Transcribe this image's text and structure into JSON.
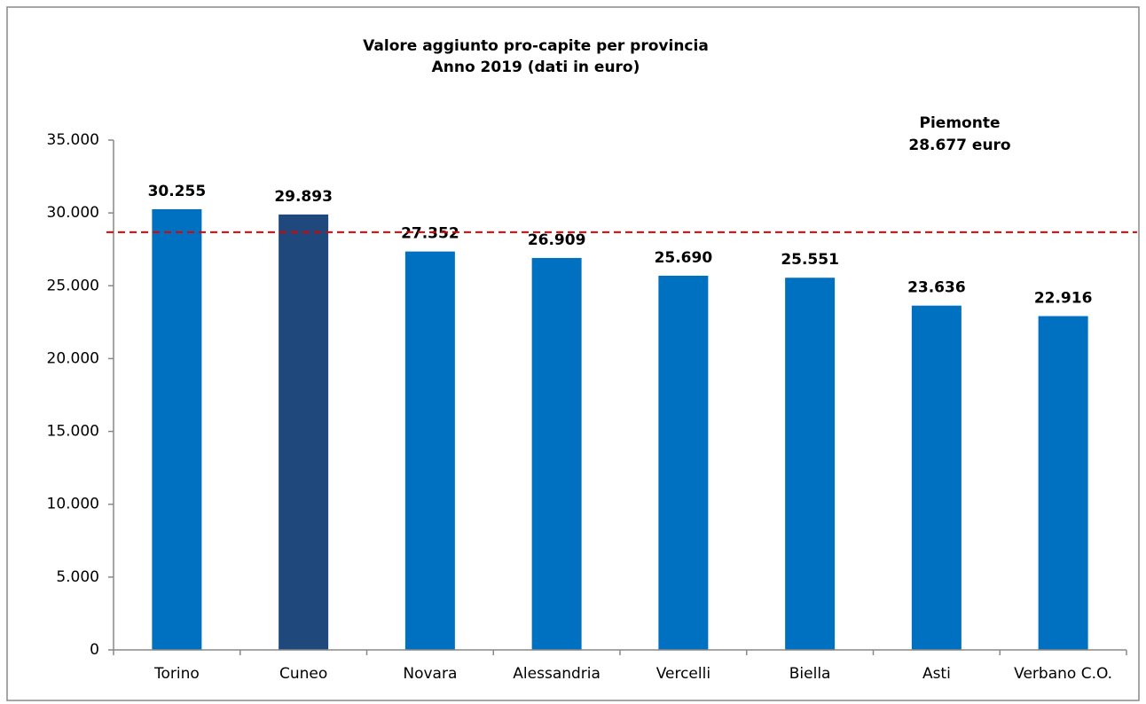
{
  "chart_data": {
    "type": "bar",
    "title": [
      "Valore aggiunto pro-capite per provincia",
      "Anno 2019 (dati in euro)"
    ],
    "categories": [
      "Torino",
      "Cuneo",
      "Novara",
      "Alessandria",
      "Vercelli",
      "Biella",
      "Asti",
      "Verbano C.O."
    ],
    "values": [
      30255,
      29893,
      27352,
      26909,
      25690,
      25551,
      23636,
      22916
    ],
    "value_labels": [
      "30.255",
      "29.893",
      "27.352",
      "26.909",
      "25.690",
      "25.551",
      "23.636",
      "22.916"
    ],
    "colors": [
      "#0070c0",
      "#1f497d",
      "#0070c0",
      "#0070c0",
      "#0070c0",
      "#0070c0",
      "#0070c0",
      "#0070c0"
    ],
    "ylim": [
      0,
      35000
    ],
    "yticks": [
      0,
      {
        "value": 5000,
        "label": "5.000"
      },
      {
        "value": 10000,
        "label": "10.000"
      },
      {
        "value": 15000,
        "label": "15.000"
      },
      {
        "value": 20000,
        "label": "20.000"
      },
      {
        "value": 25000,
        "label": "25.000"
      },
      {
        "value": 30000,
        "label": "30.000"
      },
      {
        "value": 35000,
        "label": "35.000"
      }
    ],
    "reference_line": {
      "value": 28677,
      "color": "#e00000"
    },
    "annotation": [
      "Piemonte",
      "28.677 euro"
    ]
  }
}
